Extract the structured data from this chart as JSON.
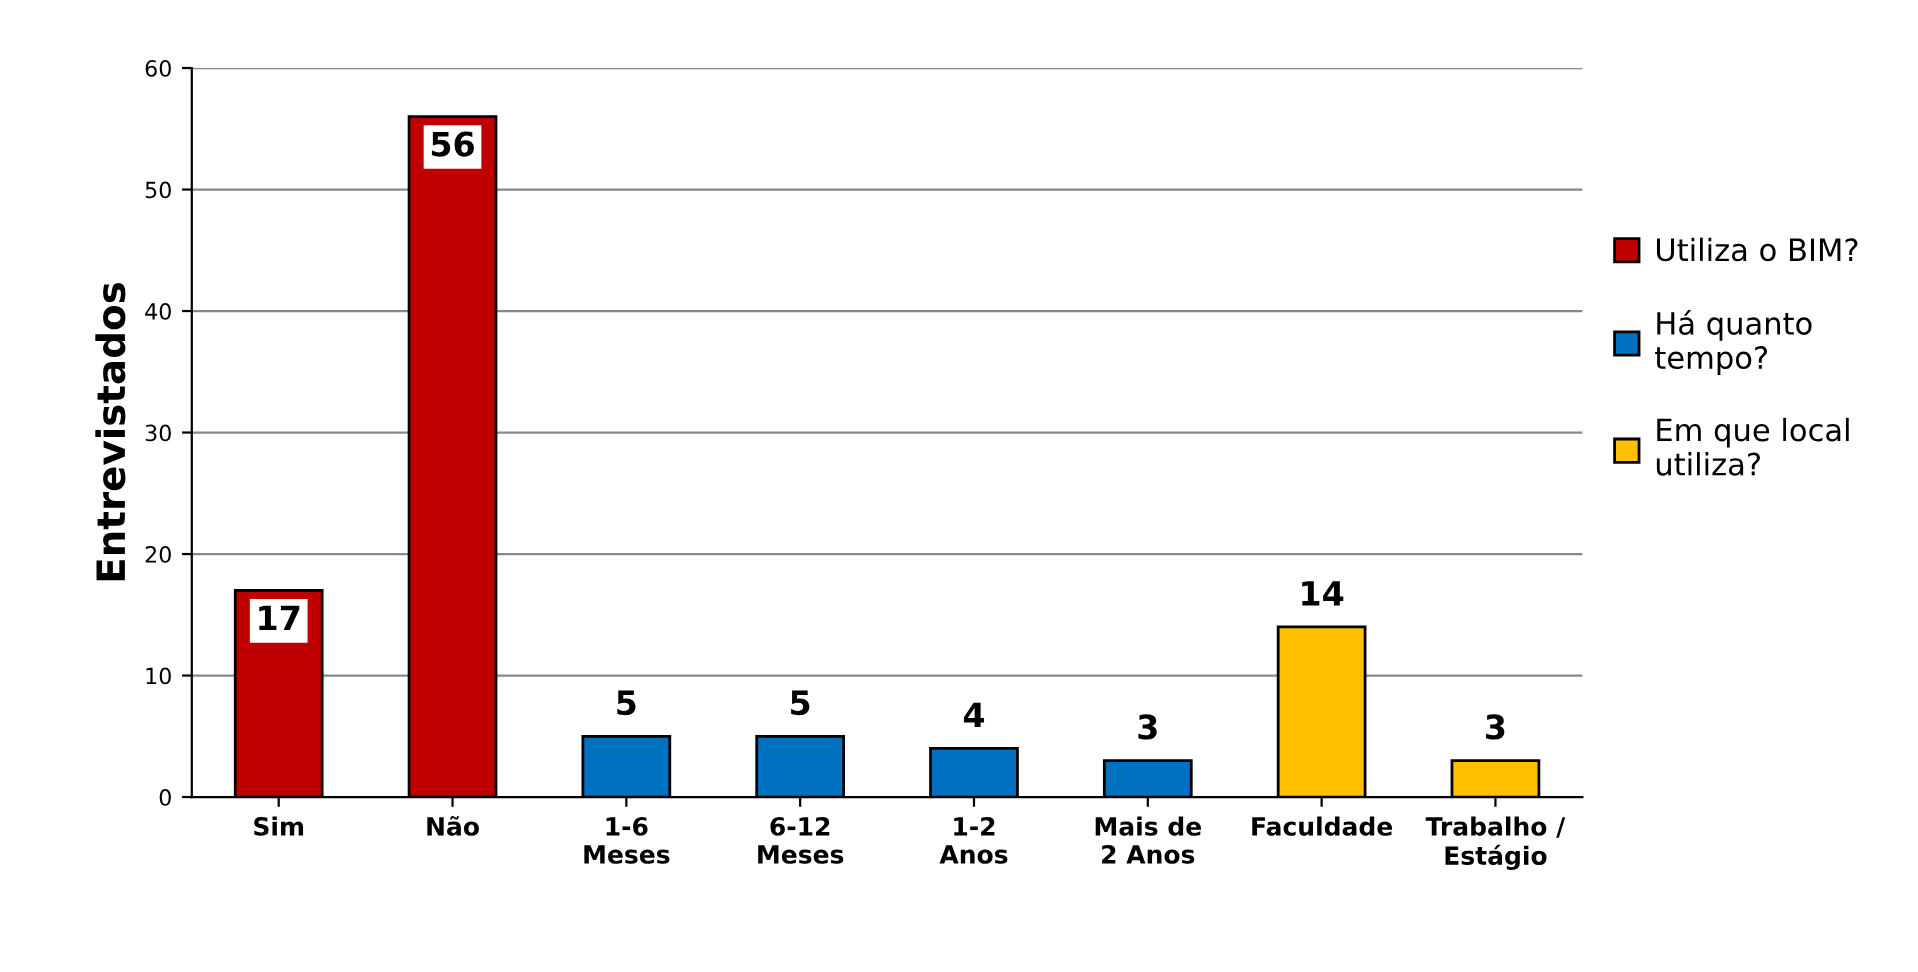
{
  "chart_data": {
    "type": "bar",
    "ylabel": "Entrevistados",
    "categories": [
      "Sim",
      "Não",
      "1-6\nMeses",
      "6-12\nMeses",
      "1-2\nAnos",
      "Mais de\n2 Anos",
      "Faculdade",
      "Trabalho /\nEstágio"
    ],
    "series": [
      {
        "name": "Utiliza o BIM?",
        "color": "#c00000",
        "values": [
          17,
          56,
          null,
          null,
          null,
          null,
          null,
          null
        ]
      },
      {
        "name": "Há quanto tempo?",
        "color": "#0070c0",
        "values": [
          null,
          null,
          5,
          5,
          4,
          3,
          null,
          null
        ]
      },
      {
        "name": "Em que local utiliza?",
        "color": "#ffc000",
        "values": [
          null,
          null,
          null,
          null,
          null,
          null,
          14,
          3
        ]
      }
    ],
    "ylim": [
      0,
      60
    ],
    "yticks": [
      0,
      10,
      20,
      30,
      40,
      50,
      60
    ],
    "grid": "y",
    "legend": "right",
    "data_labels": true
  }
}
